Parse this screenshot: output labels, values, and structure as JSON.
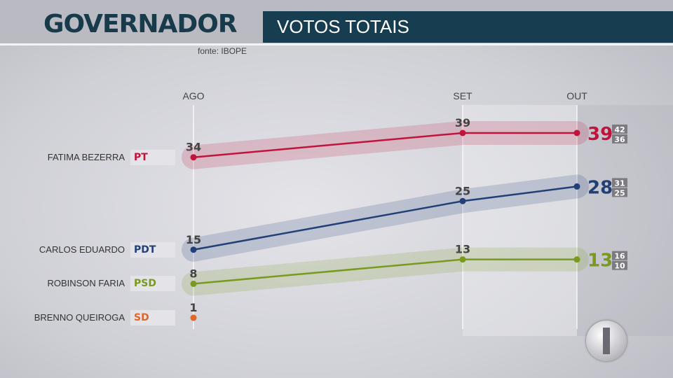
{
  "header": {
    "title": "GOVERNADOR",
    "subtitle": "VOTOS TOTAIS",
    "source": "fonte: IBOPE"
  },
  "chart_data": {
    "type": "line",
    "categories": [
      "AGO",
      "SET",
      "OUT"
    ],
    "series": [
      {
        "name": "FATIMA BEZERRA",
        "party": "PT",
        "color": "#c0143c",
        "values": [
          34,
          39,
          39
        ],
        "range_high": "42",
        "range_low": "36"
      },
      {
        "name": "CARLOS EDUARDO",
        "party": "PDT",
        "color": "#233f78",
        "values": [
          15,
          25,
          28
        ],
        "range_high": "31",
        "range_low": "25"
      },
      {
        "name": "ROBINSON FARIA",
        "party": "PSD",
        "color": "#7a9a1e",
        "values": [
          8,
          13,
          13
        ],
        "range_high": "16",
        "range_low": "10"
      },
      {
        "name": "BRENNO QUEIROGA",
        "party": "SD",
        "color": "#e0662a",
        "values": [
          1,
          null,
          null
        ]
      }
    ],
    "grid": false
  }
}
